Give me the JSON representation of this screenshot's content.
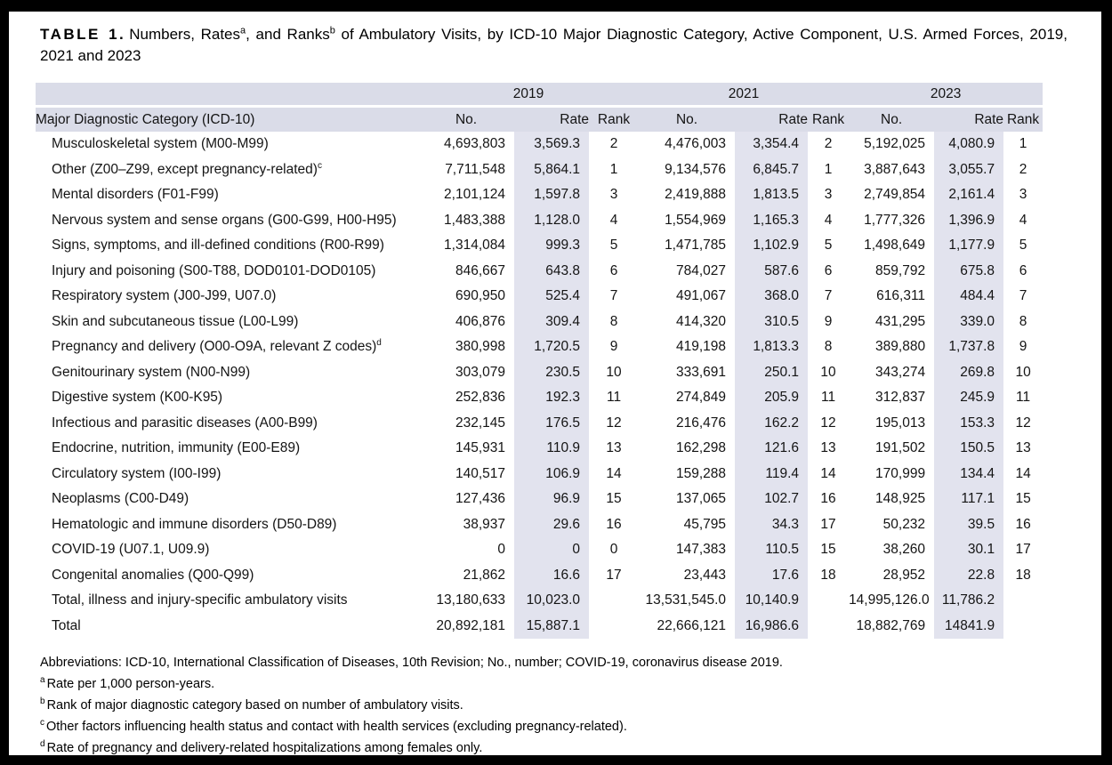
{
  "table": {
    "title": {
      "label": "TABLE 1.",
      "seg1": "Numbers, Rates",
      "sup1": "a",
      "seg2": ", and Ranks",
      "sup2": "b",
      "seg3": " of Ambulatory Visits, by ICD-10 Major Diagnostic Category, Active Component, U.S. Armed Forces, 2019, 2021 and 2023"
    },
    "years": [
      "2019",
      "2021",
      "2023"
    ],
    "columns": {
      "category": "Major Diagnostic Category (ICD-10)",
      "no": "No.",
      "rate": "Rate",
      "rank": "Rank"
    },
    "rows": [
      {
        "category": "Musculoskeletal system (M00-M99)",
        "sup": "",
        "values": [
          "4,693,803",
          "3,569.3",
          "2",
          "4,476,003",
          "3,354.4",
          "2",
          "5,192,025",
          "4,080.9",
          "1"
        ]
      },
      {
        "category": "Other (Z00–Z99, except pregnancy-related)",
        "sup": "c",
        "values": [
          "7,711,548",
          "5,864.1",
          "1",
          "9,134,576",
          "6,845.7",
          "1",
          "3,887,643",
          "3,055.7",
          "2"
        ]
      },
      {
        "category": "Mental disorders (F01-F99)",
        "sup": "",
        "values": [
          "2,101,124",
          "1,597.8",
          "3",
          "2,419,888",
          "1,813.5",
          "3",
          "2,749,854",
          "2,161.4",
          "3"
        ]
      },
      {
        "category": "Nervous system and sense organs (G00-G99, H00-H95)",
        "sup": "",
        "values": [
          "1,483,388",
          "1,128.0",
          "4",
          "1,554,969",
          "1,165.3",
          "4",
          "1,777,326",
          "1,396.9",
          "4"
        ]
      },
      {
        "category": "Signs, symptoms, and ill-defined conditions (R00-R99)",
        "sup": "",
        "values": [
          "1,314,084",
          "999.3",
          "5",
          "1,471,785",
          "1,102.9",
          "5",
          "1,498,649",
          "1,177.9",
          "5"
        ]
      },
      {
        "category": "Injury and poisoning (S00-T88, DOD0101-DOD0105)",
        "sup": "",
        "values": [
          "846,667",
          "643.8",
          "6",
          "784,027",
          "587.6",
          "6",
          "859,792",
          "675.8",
          "6"
        ]
      },
      {
        "category": "Respiratory system (J00-J99, U07.0)",
        "sup": "",
        "values": [
          "690,950",
          "525.4",
          "7",
          "491,067",
          "368.0",
          "7",
          "616,311",
          "484.4",
          "7"
        ]
      },
      {
        "category": "Skin and subcutaneous tissue (L00-L99)",
        "sup": "",
        "values": [
          "406,876",
          "309.4",
          "8",
          "414,320",
          "310.5",
          "9",
          "431,295",
          "339.0",
          "8"
        ]
      },
      {
        "category": "Pregnancy and delivery (O00-O9A, relevant Z codes)",
        "sup": "d",
        "values": [
          "380,998",
          "1,720.5",
          "9",
          "419,198",
          "1,813.3",
          "8",
          "389,880",
          "1,737.8",
          "9"
        ]
      },
      {
        "category": "Genitourinary system (N00-N99)",
        "sup": "",
        "values": [
          "303,079",
          "230.5",
          "10",
          "333,691",
          "250.1",
          "10",
          "343,274",
          "269.8",
          "10"
        ]
      },
      {
        "category": "Digestive system (K00-K95)",
        "sup": "",
        "values": [
          "252,836",
          "192.3",
          "11",
          "274,849",
          "205.9",
          "11",
          "312,837",
          "245.9",
          "11"
        ]
      },
      {
        "category": "Infectious and parasitic diseases (A00-B99)",
        "sup": "",
        "values": [
          "232,145",
          "176.5",
          "12",
          "216,476",
          "162.2",
          "12",
          "195,013",
          "153.3",
          "12"
        ]
      },
      {
        "category": "Endocrine, nutrition, immunity (E00-E89)",
        "sup": "",
        "values": [
          "145,931",
          "110.9",
          "13",
          "162,298",
          "121.6",
          "13",
          "191,502",
          "150.5",
          "13"
        ]
      },
      {
        "category": "Circulatory system (I00-I99)",
        "sup": "",
        "values": [
          "140,517",
          "106.9",
          "14",
          "159,288",
          "119.4",
          "14",
          "170,999",
          "134.4",
          "14"
        ]
      },
      {
        "category": "Neoplasms (C00-D49)",
        "sup": "",
        "values": [
          "127,436",
          "96.9",
          "15",
          "137,065",
          "102.7",
          "16",
          "148,925",
          "117.1",
          "15"
        ]
      },
      {
        "category": "Hematologic and immune disorders (D50-D89)",
        "sup": "",
        "values": [
          "38,937",
          "29.6",
          "16",
          "45,795",
          "34.3",
          "17",
          "50,232",
          "39.5",
          "16"
        ]
      },
      {
        "category": "COVID-19 (U07.1, U09.9)",
        "sup": "",
        "values": [
          "0",
          "0",
          "0",
          "147,383",
          "110.5",
          "15",
          "38,260",
          "30.1",
          "17"
        ]
      },
      {
        "category": "Congenital anomalies (Q00-Q99)",
        "sup": "",
        "values": [
          "21,862",
          "16.6",
          "17",
          "23,443",
          "17.6",
          "18",
          "28,952",
          "22.8",
          "18"
        ]
      },
      {
        "category": "Total, illness and injury-specific ambulatory visits",
        "sup": "",
        "values": [
          "13,180,633",
          "10,023.0",
          "",
          "13,531,545.0",
          "10,140.9",
          "",
          "14,995,126.0",
          "11,786.2",
          ""
        ]
      },
      {
        "category": "Total",
        "sup": "",
        "values": [
          "20,892,181",
          "15,887.1",
          "",
          "22,666,121",
          "16,986.6",
          "",
          "18,882,769",
          "14841.9",
          ""
        ]
      }
    ],
    "footnotes": {
      "abbreviations": "Abbreviations: ICD-10, International Classification of Diseases, 10th Revision; No., number; COVID-19, coronavirus disease 2019.",
      "notes": [
        {
          "sup": "a",
          "text": "Rate per 1,000 person-years."
        },
        {
          "sup": "b",
          "text": "Rank of major diagnostic category based on number of ambulatory visits."
        },
        {
          "sup": "c",
          "text": "Other factors influencing health status and contact with health services (excluding pregnancy-related)."
        },
        {
          "sup": "d",
          "text": "Rate of pregnancy and delivery-related hospitalizations among females only."
        }
      ]
    },
    "colors": {
      "header_band": "#dadce8",
      "rate_band": "#e2e3ee",
      "frame": "#000000"
    }
  }
}
